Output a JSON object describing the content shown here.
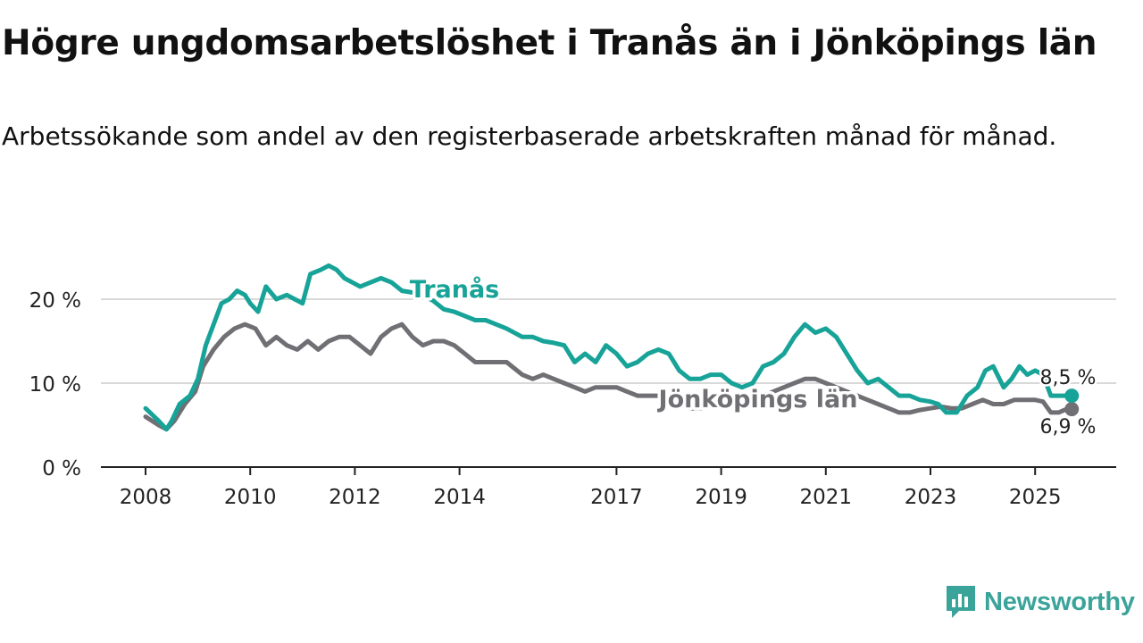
{
  "title": "Högre ungdomsarbetslöshet i Tranås än i Jönköpings län",
  "subtitle": "Arbetssökande som andel av den registerbaserade arbetskraften månad för månad.",
  "brand": {
    "name": "Newsworthy",
    "icon": "newsworthy-logo-icon"
  },
  "colors": {
    "tranas": "#17a398",
    "lan": "#706f74",
    "grid": "#d9d9d9",
    "axis": "#222222"
  },
  "chart_data": {
    "type": "line",
    "title": "Högre ungdomsarbetslöshet i Tranås än i Jönköpings län",
    "subtitle": "Arbetssökande som andel av den registerbaserade arbetskraften månad för månad.",
    "xlabel": "",
    "ylabel": "",
    "xlim": [
      2008,
      2027.0
    ],
    "ylim": [
      0,
      25
    ],
    "grid": "horizontal",
    "y_ticks": [
      {
        "value": 0,
        "label": "0 %"
      },
      {
        "value": 10,
        "label": "10 %"
      },
      {
        "value": 20,
        "label": "20 %"
      }
    ],
    "x_ticks": [
      {
        "value": 2008,
        "label": "2008"
      },
      {
        "value": 2010,
        "label": "2010"
      },
      {
        "value": 2012,
        "label": "2012"
      },
      {
        "value": 2014,
        "label": "2014"
      },
      {
        "value": 2017,
        "label": "2017"
      },
      {
        "value": 2019,
        "label": "2019"
      },
      {
        "value": 2021,
        "label": "2021"
      },
      {
        "value": 2023,
        "label": "2023"
      },
      {
        "value": 2025,
        "label": "2025"
      }
    ],
    "series": [
      {
        "name": "Tranås",
        "color": "#17a398",
        "end_label": "8,5 %",
        "x": [
          2008.0,
          2008.25,
          2008.4,
          2008.5,
          2008.65,
          2008.85,
          2009.0,
          2009.15,
          2009.3,
          2009.45,
          2009.6,
          2009.75,
          2009.9,
          2010.0,
          2010.15,
          2010.3,
          2010.5,
          2010.7,
          2010.85,
          2011.0,
          2011.15,
          2011.35,
          2011.5,
          2011.65,
          2011.8,
          2011.95,
          2012.1,
          2012.3,
          2012.5,
          2012.7,
          2012.9,
          2013.1,
          2013.3,
          2013.5,
          2013.7,
          2013.9,
          2014.1,
          2014.3,
          2014.5,
          2014.7,
          2014.9,
          2015.2,
          2015.4,
          2015.6,
          2015.8,
          2016.0,
          2016.2,
          2016.4,
          2016.6,
          2016.8,
          2017.0,
          2017.2,
          2017.4,
          2017.6,
          2017.8,
          2018.0,
          2018.2,
          2018.4,
          2018.6,
          2018.8,
          2019.0,
          2019.2,
          2019.4,
          2019.6,
          2019.8,
          2020.0,
          2020.2,
          2020.4,
          2020.6,
          2020.8,
          2021.0,
          2021.2,
          2021.4,
          2021.6,
          2021.8,
          2022.0,
          2022.2,
          2022.4,
          2022.6,
          2022.8,
          2023.0,
          2023.15,
          2023.3,
          2023.5,
          2023.7,
          2023.9,
          2024.05,
          2024.2,
          2024.4,
          2024.55,
          2024.7,
          2024.85,
          2025.0,
          2025.15,
          2025.3,
          2025.45,
          2025.6,
          2025.7
        ],
        "values": [
          7.0,
          5.5,
          4.5,
          5.5,
          7.5,
          8.5,
          10.5,
          14.5,
          17.0,
          19.5,
          20.0,
          21.0,
          20.5,
          19.5,
          18.5,
          21.5,
          20.0,
          20.5,
          20.0,
          19.5,
          23.0,
          23.5,
          24.0,
          23.5,
          22.5,
          22.0,
          21.5,
          22.0,
          22.5,
          22.0,
          21.0,
          20.8,
          20.5,
          19.8,
          18.8,
          18.5,
          18.0,
          17.5,
          17.5,
          17.0,
          16.5,
          15.5,
          15.5,
          15.0,
          14.8,
          14.5,
          12.5,
          13.5,
          12.5,
          14.5,
          13.5,
          12.0,
          12.5,
          13.5,
          14.0,
          13.5,
          11.5,
          10.5,
          10.5,
          11.0,
          11.0,
          10.0,
          9.5,
          10.0,
          12.0,
          12.5,
          13.5,
          15.5,
          17.0,
          16.0,
          16.5,
          15.5,
          13.5,
          11.5,
          10.0,
          10.5,
          9.5,
          8.5,
          8.5,
          8.0,
          7.8,
          7.5,
          6.5,
          6.5,
          8.5,
          9.5,
          11.5,
          12.0,
          9.5,
          10.5,
          12.0,
          11.0,
          11.5,
          11.0,
          8.5,
          8.5,
          8.5,
          8.5
        ]
      },
      {
        "name": "Jönköpings län",
        "color": "#706f74",
        "end_label": "6,9 %",
        "x": [
          2008.0,
          2008.25,
          2008.4,
          2008.55,
          2008.75,
          2008.95,
          2009.1,
          2009.3,
          2009.5,
          2009.7,
          2009.9,
          2010.1,
          2010.3,
          2010.5,
          2010.7,
          2010.9,
          2011.1,
          2011.3,
          2011.5,
          2011.7,
          2011.9,
          2012.1,
          2012.3,
          2012.5,
          2012.7,
          2012.9,
          2013.1,
          2013.3,
          2013.5,
          2013.7,
          2013.9,
          2014.1,
          2014.3,
          2014.5,
          2014.7,
          2014.9,
          2015.2,
          2015.4,
          2015.6,
          2015.8,
          2016.0,
          2016.2,
          2016.4,
          2016.6,
          2016.8,
          2017.0,
          2017.2,
          2017.4,
          2017.6,
          2017.8,
          2018.0,
          2018.2,
          2018.4,
          2018.6,
          2018.8,
          2019.0,
          2019.2,
          2019.4,
          2019.6,
          2019.8,
          2020.0,
          2020.2,
          2020.4,
          2020.6,
          2020.8,
          2021.0,
          2021.2,
          2021.4,
          2021.6,
          2021.8,
          2022.0,
          2022.2,
          2022.4,
          2022.6,
          2022.8,
          2023.0,
          2023.2,
          2023.4,
          2023.6,
          2023.8,
          2024.0,
          2024.2,
          2024.4,
          2024.6,
          2024.8,
          2025.0,
          2025.15,
          2025.3,
          2025.45,
          2025.6,
          2025.7
        ],
        "values": [
          6.0,
          5.0,
          4.5,
          5.5,
          7.5,
          9.0,
          12.0,
          14.0,
          15.5,
          16.5,
          17.0,
          16.5,
          14.5,
          15.5,
          14.5,
          14.0,
          15.0,
          14.0,
          15.0,
          15.5,
          15.5,
          14.5,
          13.5,
          15.5,
          16.5,
          17.0,
          15.5,
          14.5,
          15.0,
          15.0,
          14.5,
          13.5,
          12.5,
          12.5,
          12.5,
          12.5,
          11.0,
          10.5,
          11.0,
          10.5,
          10.0,
          9.5,
          9.0,
          9.5,
          9.5,
          9.5,
          9.0,
          8.5,
          8.5,
          8.5,
          8.0,
          7.5,
          7.0,
          7.0,
          7.5,
          7.5,
          7.5,
          7.5,
          8.0,
          8.5,
          9.0,
          9.5,
          10.0,
          10.5,
          10.5,
          10.0,
          9.5,
          9.0,
          8.5,
          8.0,
          7.5,
          7.0,
          6.5,
          6.5,
          6.8,
          7.0,
          7.2,
          7.0,
          7.0,
          7.5,
          8.0,
          7.5,
          7.5,
          8.0,
          8.0,
          8.0,
          7.8,
          6.5,
          6.5,
          6.9,
          6.9
        ]
      }
    ]
  }
}
